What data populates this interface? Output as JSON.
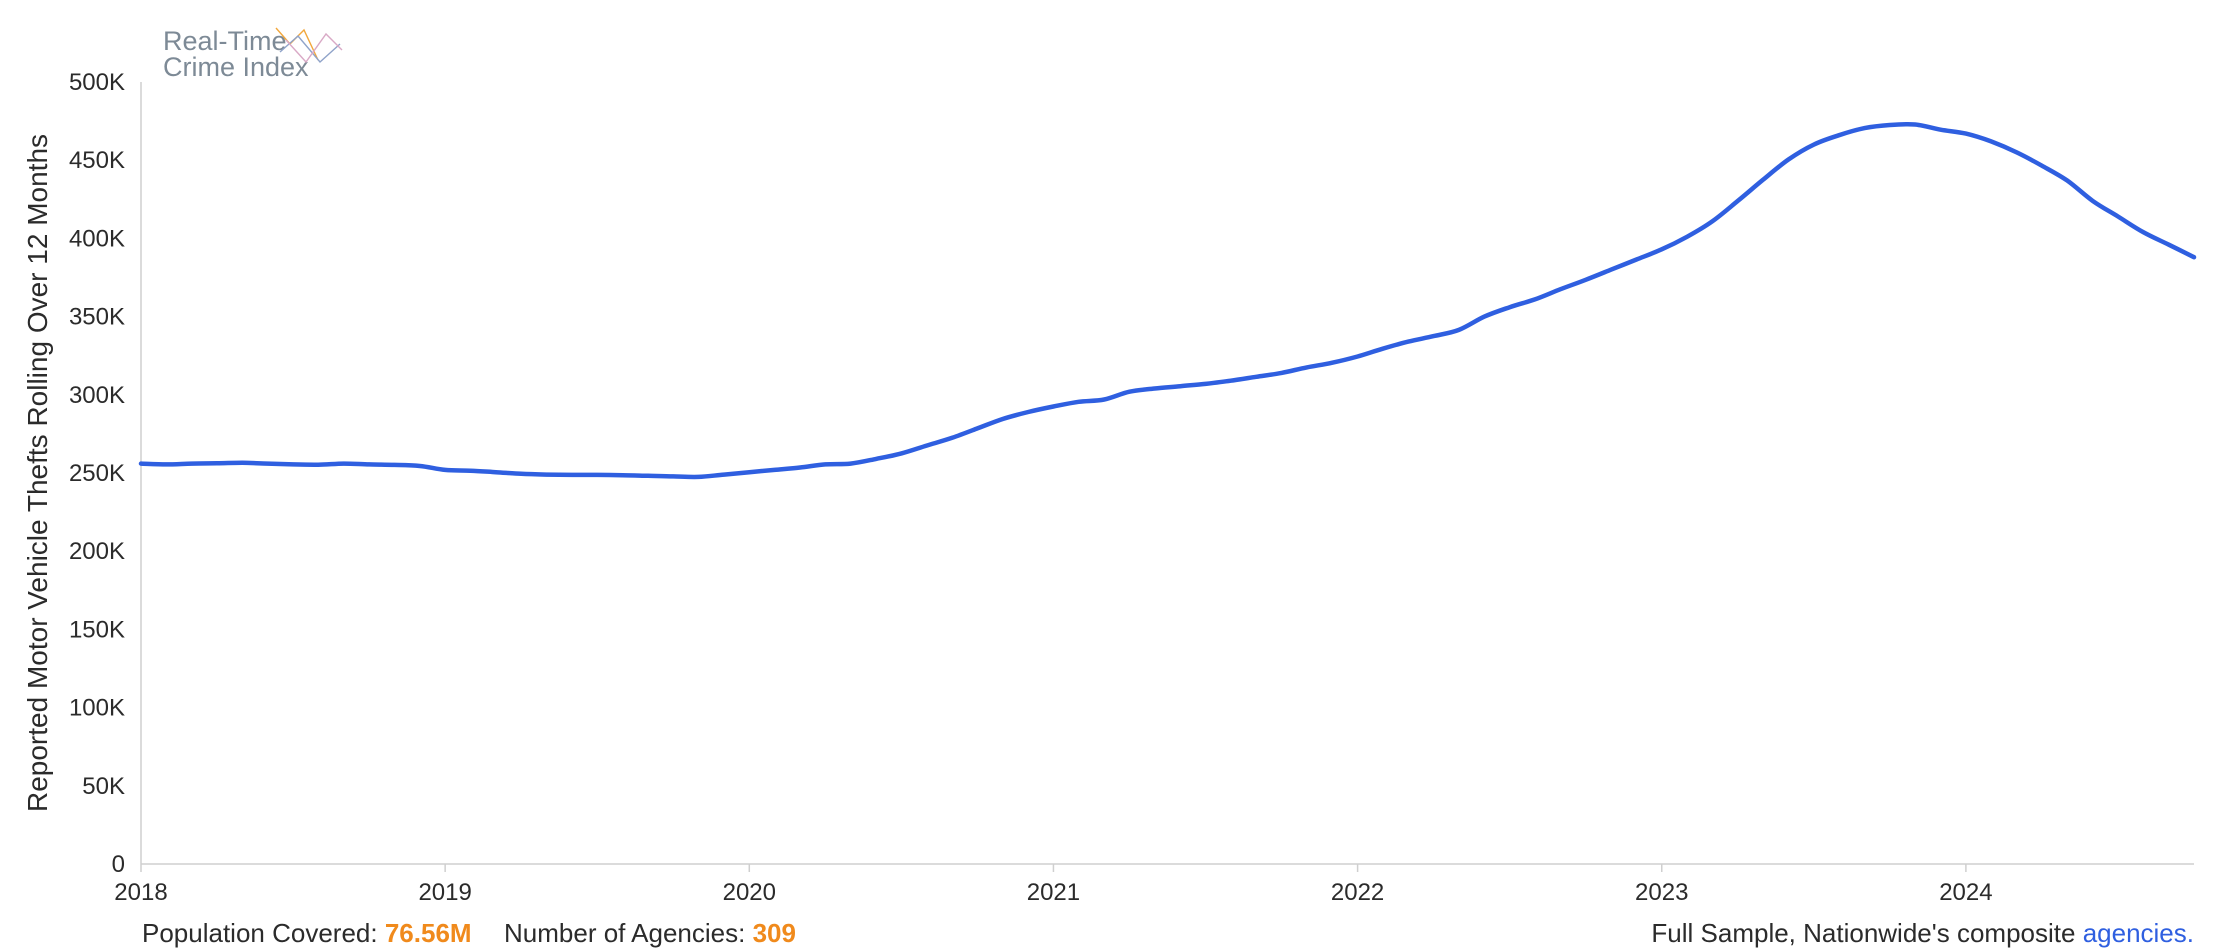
{
  "logo": {
    "line1": "Real-Time",
    "line2": "Crime Index",
    "icon": "crossed-lines-logo-icon"
  },
  "chart_data": {
    "type": "line",
    "title": "",
    "xlabel": "",
    "ylabel": "Reported Motor Vehicle Thefts Rolling Over 12 Months",
    "xlim": [
      2018,
      2024.75
    ],
    "ylim": [
      0,
      500000
    ],
    "x_ticks": [
      "2018",
      "2019",
      "2020",
      "2021",
      "2022",
      "2023",
      "2024"
    ],
    "y_ticks": [
      "0",
      "50K",
      "100K",
      "150K",
      "200K",
      "250K",
      "300K",
      "350K",
      "400K",
      "450K",
      "500K"
    ],
    "grid": false,
    "legend": "none",
    "line_color": "#2f5fe0",
    "series": [
      {
        "x": [
          2018.0,
          2018.083,
          2018.167,
          2018.25,
          2018.333,
          2018.417,
          2018.5,
          2018.583,
          2018.667,
          2018.75,
          2018.833,
          2018.917,
          2019.0,
          2019.083,
          2019.167,
          2019.25,
          2019.333,
          2019.417,
          2019.5,
          2019.583,
          2019.667,
          2019.75,
          2019.833,
          2019.917,
          2020.0,
          2020.083,
          2020.167,
          2020.25,
          2020.333,
          2020.417,
          2020.5,
          2020.583,
          2020.667,
          2020.75,
          2020.833,
          2020.917,
          2021.0,
          2021.083,
          2021.167,
          2021.25,
          2021.333,
          2021.417,
          2021.5,
          2021.583,
          2021.667,
          2021.75,
          2021.833,
          2021.917,
          2022.0,
          2022.083,
          2022.167,
          2022.25,
          2022.333,
          2022.417,
          2022.5,
          2022.583,
          2022.667,
          2022.75,
          2022.833,
          2022.917,
          2023.0,
          2023.083,
          2023.167,
          2023.25,
          2023.333,
          2023.417,
          2023.5,
          2023.583,
          2023.667,
          2023.75,
          2023.833,
          2023.917,
          2024.0,
          2024.083,
          2024.167,
          2024.25,
          2024.333,
          2024.417,
          2024.5,
          2024.583,
          2024.667,
          2024.75
        ],
        "y": [
          256000,
          255500,
          256000,
          256200,
          256500,
          256000,
          255500,
          255300,
          256000,
          255500,
          255200,
          254500,
          252000,
          251500,
          250500,
          249500,
          249000,
          248800,
          248800,
          248600,
          248200,
          247800,
          247500,
          249000,
          250500,
          252000,
          253500,
          255500,
          256000,
          259000,
          262500,
          267500,
          272500,
          278500,
          284500,
          289000,
          292500,
          295500,
          297000,
          302000,
          304000,
          305500,
          307000,
          309000,
          311500,
          314000,
          317500,
          320500,
          324500,
          329500,
          334000,
          337500,
          341500,
          350000,
          356000,
          361000,
          367500,
          373500,
          380000,
          386500,
          393000,
          401000,
          411000,
          424000,
          437500,
          450500,
          460000,
          466000,
          470500,
          472500,
          472800,
          469500,
          467000,
          462000,
          455000,
          446500,
          437000,
          424000,
          414000,
          404000,
          396000,
          388000
        ]
      }
    ]
  },
  "footer": {
    "population_label": "Population Covered:",
    "population_value": "76.56M",
    "agencies_label": "Number of Agencies:",
    "agencies_value": "309",
    "sample_text": "Full Sample, Nationwide's composite",
    "sample_link": "agencies."
  }
}
